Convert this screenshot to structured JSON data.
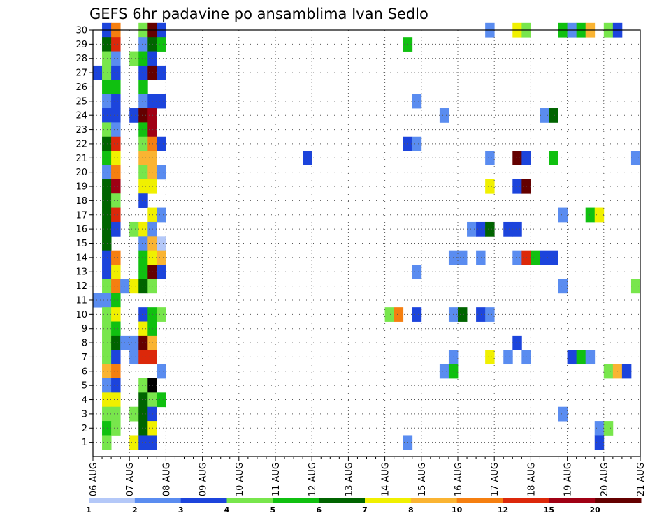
{
  "chart_data": {
    "type": "heatmap",
    "title": "GEFS 6hr padavine po ansamblima Ivan Sedlo",
    "xlabel": "",
    "ylabel": "",
    "x_ticks": [
      "06 AUG",
      "07 AUG",
      "08 AUG",
      "09 AUG",
      "10 AUG",
      "11 AUG",
      "12 AUG",
      "13 AUG",
      "14 AUG",
      "15 AUG",
      "16 AUG",
      "17 AUG",
      "18 AUG",
      "19 AUG",
      "20 AUG",
      "21 AUG"
    ],
    "y_ticks": [
      1,
      2,
      3,
      4,
      5,
      6,
      7,
      8,
      9,
      10,
      11,
      12,
      13,
      14,
      15,
      16,
      17,
      18,
      19,
      20,
      21,
      22,
      23,
      24,
      25,
      26,
      27,
      28,
      29,
      30
    ],
    "x_range_steps": [
      0,
      60
    ],
    "y_range": [
      0,
      30
    ],
    "grid": true,
    "legend": "bottom colorbar",
    "colorbar": {
      "labels": [
        "1",
        "2",
        "3",
        "4",
        "5",
        "6",
        "7",
        "8",
        "10",
        "12",
        "15",
        "20"
      ],
      "colors": [
        "#b4c8f8",
        "#5a8cf0",
        "#1c44dc",
        "#78e64c",
        "#10c010",
        "#006400",
        "#f0f000",
        "#fab432",
        "#f57f10",
        "#dc280a",
        "#a00014",
        "#640000"
      ]
    },
    "cells": [
      [
        30,
        1,
        2
      ],
      [
        30,
        2,
        8
      ],
      [
        30,
        5,
        3
      ],
      [
        30,
        6,
        11
      ],
      [
        30,
        7,
        2
      ],
      [
        30,
        43,
        1
      ],
      [
        30,
        46,
        6
      ],
      [
        30,
        47,
        3
      ],
      [
        30,
        51,
        4
      ],
      [
        30,
        52,
        1
      ],
      [
        30,
        53,
        4
      ],
      [
        30,
        54,
        7
      ],
      [
        30,
        56,
        3
      ],
      [
        30,
        57,
        2
      ],
      [
        29,
        1,
        5
      ],
      [
        29,
        2,
        9
      ],
      [
        29,
        5,
        1
      ],
      [
        29,
        6,
        5
      ],
      [
        29,
        7,
        4
      ],
      [
        29,
        34,
        4
      ],
      [
        28,
        1,
        3
      ],
      [
        28,
        2,
        1
      ],
      [
        28,
        4,
        3
      ],
      [
        28,
        5,
        4
      ],
      [
        28,
        6,
        2
      ],
      [
        27,
        0,
        2
      ],
      [
        27,
        1,
        3
      ],
      [
        27,
        2,
        2
      ],
      [
        27,
        5,
        2
      ],
      [
        27,
        6,
        11
      ],
      [
        27,
        7,
        2
      ],
      [
        26,
        1,
        4
      ],
      [
        26,
        2,
        4
      ],
      [
        26,
        5,
        4
      ],
      [
        25,
        1,
        1
      ],
      [
        25,
        2,
        2
      ],
      [
        25,
        5,
        1
      ],
      [
        25,
        6,
        2
      ],
      [
        25,
        7,
        2
      ],
      [
        25,
        35,
        1
      ],
      [
        24,
        1,
        2
      ],
      [
        24,
        2,
        2
      ],
      [
        24,
        4,
        2
      ],
      [
        24,
        5,
        11
      ],
      [
        24,
        6,
        10
      ],
      [
        24,
        38,
        1
      ],
      [
        24,
        49,
        1
      ],
      [
        24,
        50,
        5
      ],
      [
        23,
        1,
        3
      ],
      [
        23,
        2,
        1
      ],
      [
        23,
        5,
        4
      ],
      [
        23,
        6,
        10
      ],
      [
        22,
        1,
        5
      ],
      [
        22,
        2,
        9
      ],
      [
        22,
        5,
        3
      ],
      [
        22,
        6,
        8
      ],
      [
        22,
        7,
        2
      ],
      [
        22,
        34,
        2
      ],
      [
        22,
        35,
        1
      ],
      [
        21,
        1,
        4
      ],
      [
        21,
        2,
        6
      ],
      [
        21,
        5,
        7
      ],
      [
        21,
        6,
        7
      ],
      [
        21,
        23,
        2
      ],
      [
        21,
        43,
        1
      ],
      [
        21,
        46,
        11
      ],
      [
        21,
        47,
        2
      ],
      [
        21,
        50,
        4
      ],
      [
        21,
        59,
        1
      ],
      [
        20,
        1,
        1
      ],
      [
        20,
        2,
        8
      ],
      [
        20,
        5,
        3
      ],
      [
        20,
        6,
        7
      ],
      [
        20,
        7,
        1
      ],
      [
        19,
        1,
        5
      ],
      [
        19,
        2,
        10
      ],
      [
        19,
        5,
        6
      ],
      [
        19,
        6,
        6
      ],
      [
        19,
        43,
        6
      ],
      [
        19,
        46,
        2
      ],
      [
        19,
        47,
        11
      ],
      [
        18,
        1,
        5
      ],
      [
        18,
        2,
        3
      ],
      [
        18,
        5,
        2
      ],
      [
        17,
        1,
        5
      ],
      [
        17,
        2,
        9
      ],
      [
        17,
        6,
        6
      ],
      [
        17,
        7,
        1
      ],
      [
        17,
        51,
        1
      ],
      [
        17,
        54,
        4
      ],
      [
        17,
        55,
        6
      ],
      [
        16,
        1,
        5
      ],
      [
        16,
        2,
        2
      ],
      [
        16,
        4,
        3
      ],
      [
        16,
        5,
        6
      ],
      [
        16,
        6,
        1
      ],
      [
        16,
        41,
        1
      ],
      [
        16,
        42,
        2
      ],
      [
        16,
        43,
        5
      ],
      [
        16,
        45,
        2
      ],
      [
        16,
        46,
        2
      ],
      [
        15,
        1,
        5
      ],
      [
        15,
        5,
        1
      ],
      [
        15,
        6,
        7
      ],
      [
        15,
        7,
        0
      ],
      [
        14,
        1,
        2
      ],
      [
        14,
        2,
        8
      ],
      [
        14,
        5,
        4
      ],
      [
        14,
        6,
        6
      ],
      [
        14,
        7,
        7
      ],
      [
        14,
        39,
        1
      ],
      [
        14,
        40,
        1
      ],
      [
        14,
        42,
        1
      ],
      [
        14,
        46,
        1
      ],
      [
        14,
        47,
        9
      ],
      [
        14,
        48,
        4
      ],
      [
        14,
        49,
        2
      ],
      [
        14,
        50,
        2
      ],
      [
        13,
        1,
        2
      ],
      [
        13,
        2,
        6
      ],
      [
        13,
        5,
        4
      ],
      [
        13,
        6,
        11
      ],
      [
        13,
        7,
        2
      ],
      [
        13,
        35,
        1
      ],
      [
        12,
        1,
        3
      ],
      [
        12,
        2,
        8
      ],
      [
        12,
        3,
        1
      ],
      [
        12,
        4,
        6
      ],
      [
        12,
        5,
        5
      ],
      [
        12,
        6,
        3
      ],
      [
        12,
        51,
        1
      ],
      [
        12,
        59,
        3
      ],
      [
        11,
        0,
        1
      ],
      [
        11,
        1,
        1
      ],
      [
        11,
        2,
        4
      ],
      [
        10,
        1,
        3
      ],
      [
        10,
        2,
        6
      ],
      [
        10,
        5,
        2
      ],
      [
        10,
        6,
        4
      ],
      [
        10,
        7,
        3
      ],
      [
        10,
        32,
        3
      ],
      [
        10,
        33,
        8
      ],
      [
        10,
        35,
        2
      ],
      [
        10,
        39,
        1
      ],
      [
        10,
        40,
        5
      ],
      [
        10,
        42,
        2
      ],
      [
        10,
        43,
        1
      ],
      [
        9,
        1,
        3
      ],
      [
        9,
        2,
        4
      ],
      [
        9,
        5,
        6
      ],
      [
        9,
        6,
        4
      ],
      [
        8,
        1,
        3
      ],
      [
        8,
        2,
        5
      ],
      [
        8,
        3,
        1
      ],
      [
        8,
        4,
        1
      ],
      [
        8,
        5,
        11
      ],
      [
        8,
        6,
        7
      ],
      [
        8,
        46,
        2
      ],
      [
        7,
        1,
        3
      ],
      [
        7,
        2,
        2
      ],
      [
        7,
        4,
        1
      ],
      [
        7,
        5,
        9
      ],
      [
        7,
        6,
        9
      ],
      [
        7,
        39,
        1
      ],
      [
        7,
        43,
        6
      ],
      [
        7,
        45,
        1
      ],
      [
        7,
        47,
        1
      ],
      [
        7,
        52,
        2
      ],
      [
        7,
        53,
        4
      ],
      [
        7,
        54,
        1
      ],
      [
        6,
        1,
        7
      ],
      [
        6,
        2,
        8
      ],
      [
        6,
        7,
        1
      ],
      [
        6,
        38,
        1
      ],
      [
        6,
        39,
        4
      ],
      [
        6,
        56,
        3
      ],
      [
        6,
        57,
        7
      ],
      [
        6,
        58,
        2
      ],
      [
        5,
        1,
        1
      ],
      [
        5,
        2,
        2
      ],
      [
        5,
        5,
        3
      ],
      [
        5,
        6,
        12
      ],
      [
        4,
        1,
        6
      ],
      [
        4,
        2,
        6
      ],
      [
        4,
        5,
        5
      ],
      [
        4,
        6,
        3
      ],
      [
        4,
        7,
        4
      ],
      [
        3,
        1,
        3
      ],
      [
        3,
        2,
        3
      ],
      [
        3,
        4,
        3
      ],
      [
        3,
        5,
        5
      ],
      [
        3,
        6,
        2
      ],
      [
        3,
        51,
        1
      ],
      [
        2,
        1,
        4
      ],
      [
        2,
        2,
        3
      ],
      [
        2,
        5,
        5
      ],
      [
        2,
        6,
        6
      ],
      [
        2,
        55,
        1
      ],
      [
        2,
        56,
        3
      ],
      [
        1,
        1,
        3
      ],
      [
        1,
        4,
        6
      ],
      [
        1,
        5,
        2
      ],
      [
        1,
        6,
        2
      ],
      [
        1,
        34,
        1
      ],
      [
        1,
        55,
        2
      ]
    ]
  }
}
